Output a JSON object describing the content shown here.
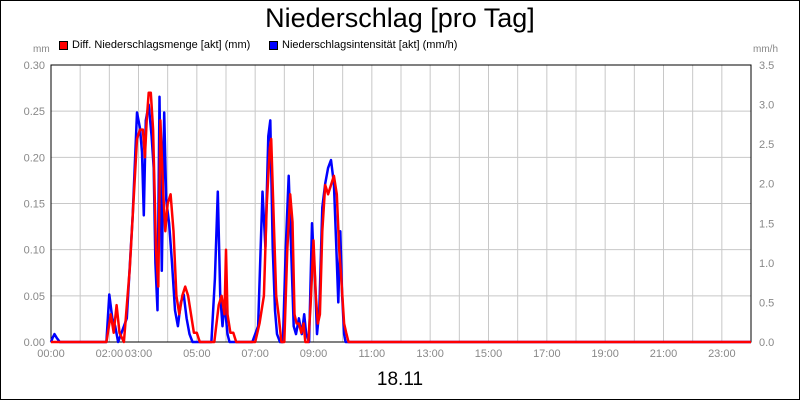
{
  "chart_data": {
    "type": "line",
    "title": "Niederschlag [pro Tag]",
    "xlabel": "18.11",
    "left_axis_unit": "mm",
    "right_axis_unit": "mm/h",
    "x_ticks": [
      "00:00",
      "02:00",
      "03:00",
      "05:00",
      "07:00",
      "09:00",
      "11:00",
      "13:00",
      "15:00",
      "17:00",
      "19:00",
      "21:00",
      "23:00"
    ],
    "y_left_ticks": [
      "0.00",
      "0.05",
      "0.10",
      "0.15",
      "0.20",
      "0.25",
      "0.30"
    ],
    "y_right_ticks": [
      "0.0",
      "0.5",
      "1.0",
      "1.5",
      "2.0",
      "2.5",
      "3.0",
      "3.5"
    ],
    "ylim_left": [
      0,
      0.3
    ],
    "ylim_right": [
      0,
      3.5
    ],
    "xlim": [
      0,
      24
    ],
    "grid": true,
    "legend_position": "top-left",
    "series": [
      {
        "name": "Diff. Niederschlagsmenge [akt] (mm)",
        "axis": "left",
        "color": "#ff0000",
        "points": [
          [
            0.0,
            0.0
          ],
          [
            1.9,
            0.0
          ],
          [
            2.05,
            0.03
          ],
          [
            2.15,
            0.01
          ],
          [
            2.25,
            0.04
          ],
          [
            2.35,
            0.01
          ],
          [
            2.5,
            0.0
          ],
          [
            2.7,
            0.08
          ],
          [
            2.95,
            0.22
          ],
          [
            3.05,
            0.23
          ],
          [
            3.15,
            0.23
          ],
          [
            3.22,
            0.2
          ],
          [
            3.28,
            0.24
          ],
          [
            3.35,
            0.27
          ],
          [
            3.42,
            0.27
          ],
          [
            3.5,
            0.23
          ],
          [
            3.6,
            0.1
          ],
          [
            3.68,
            0.06
          ],
          [
            3.75,
            0.24
          ],
          [
            3.85,
            0.16
          ],
          [
            3.92,
            0.12
          ],
          [
            4.0,
            0.15
          ],
          [
            4.1,
            0.16
          ],
          [
            4.2,
            0.12
          ],
          [
            4.3,
            0.05
          ],
          [
            4.4,
            0.03
          ],
          [
            4.5,
            0.05
          ],
          [
            4.6,
            0.06
          ],
          [
            4.7,
            0.05
          ],
          [
            4.8,
            0.03
          ],
          [
            4.9,
            0.01
          ],
          [
            5.0,
            0.01
          ],
          [
            5.1,
            0.0
          ],
          [
            5.6,
            0.0
          ],
          [
            5.75,
            0.04
          ],
          [
            5.85,
            0.05
          ],
          [
            5.95,
            0.03
          ],
          [
            6.0,
            0.1
          ],
          [
            6.05,
            0.03
          ],
          [
            6.15,
            0.01
          ],
          [
            6.25,
            0.01
          ],
          [
            6.35,
            0.0
          ],
          [
            7.0,
            0.0
          ],
          [
            7.15,
            0.02
          ],
          [
            7.3,
            0.05
          ],
          [
            7.4,
            0.15
          ],
          [
            7.5,
            0.21
          ],
          [
            7.55,
            0.22
          ],
          [
            7.65,
            0.12
          ],
          [
            7.72,
            0.05
          ],
          [
            7.8,
            0.03
          ],
          [
            7.9,
            0.0
          ],
          [
            8.0,
            0.0
          ],
          [
            8.1,
            0.1
          ],
          [
            8.2,
            0.16
          ],
          [
            8.28,
            0.13
          ],
          [
            8.35,
            0.03
          ],
          [
            8.42,
            0.02
          ],
          [
            8.5,
            0.02
          ],
          [
            8.58,
            0.01
          ],
          [
            8.66,
            0.02
          ],
          [
            8.72,
            0.0
          ],
          [
            8.82,
            0.0
          ],
          [
            8.9,
            0.04
          ],
          [
            9.0,
            0.11
          ],
          [
            9.08,
            0.05
          ],
          [
            9.15,
            0.02
          ],
          [
            9.22,
            0.03
          ],
          [
            9.3,
            0.12
          ],
          [
            9.4,
            0.17
          ],
          [
            9.5,
            0.16
          ],
          [
            9.6,
            0.17
          ],
          [
            9.7,
            0.18
          ],
          [
            9.8,
            0.16
          ],
          [
            9.88,
            0.1
          ],
          [
            9.95,
            0.07
          ],
          [
            10.05,
            0.02
          ],
          [
            10.12,
            0.01
          ],
          [
            10.2,
            0.0
          ],
          [
            24.0,
            0.0
          ]
        ]
      },
      {
        "name": "Niederschlagsintensität [akt] (mm/h)",
        "axis": "right",
        "color": "#0000ff",
        "points": [
          [
            0.0,
            0.0
          ],
          [
            0.05,
            0.05
          ],
          [
            0.12,
            0.1
          ],
          [
            0.2,
            0.05
          ],
          [
            0.3,
            0.0
          ],
          [
            1.9,
            0.0
          ],
          [
            2.0,
            0.6
          ],
          [
            2.1,
            0.3
          ],
          [
            2.2,
            0.2
          ],
          [
            2.3,
            0.0
          ],
          [
            2.6,
            0.3
          ],
          [
            2.8,
            1.6
          ],
          [
            2.95,
            2.9
          ],
          [
            3.05,
            2.7
          ],
          [
            3.12,
            2.4
          ],
          [
            3.18,
            1.6
          ],
          [
            3.25,
            2.8
          ],
          [
            3.35,
            3.0
          ],
          [
            3.45,
            2.6
          ],
          [
            3.52,
            2.2
          ],
          [
            3.58,
            1.0
          ],
          [
            3.65,
            0.4
          ],
          [
            3.72,
            3.1
          ],
          [
            3.8,
            0.9
          ],
          [
            3.88,
            2.9
          ],
          [
            3.95,
            1.8
          ],
          [
            4.05,
            1.5
          ],
          [
            4.15,
            1.0
          ],
          [
            4.25,
            0.4
          ],
          [
            4.35,
            0.2
          ],
          [
            4.45,
            0.5
          ],
          [
            4.55,
            0.6
          ],
          [
            4.65,
            0.3
          ],
          [
            4.75,
            0.1
          ],
          [
            4.85,
            0.0
          ],
          [
            5.5,
            0.0
          ],
          [
            5.62,
            0.8
          ],
          [
            5.72,
            1.9
          ],
          [
            5.8,
            0.6
          ],
          [
            5.88,
            0.2
          ],
          [
            5.95,
            0.5
          ],
          [
            6.05,
            0.1
          ],
          [
            6.12,
            0.0
          ],
          [
            6.9,
            0.0
          ],
          [
            7.1,
            0.2
          ],
          [
            7.25,
            1.9
          ],
          [
            7.35,
            1.2
          ],
          [
            7.45,
            2.6
          ],
          [
            7.52,
            2.8
          ],
          [
            7.6,
            1.2
          ],
          [
            7.68,
            0.4
          ],
          [
            7.75,
            0.1
          ],
          [
            7.85,
            0.0
          ],
          [
            7.95,
            0.0
          ],
          [
            8.05,
            1.2
          ],
          [
            8.15,
            2.1
          ],
          [
            8.25,
            1.0
          ],
          [
            8.32,
            0.2
          ],
          [
            8.4,
            0.1
          ],
          [
            8.5,
            0.3
          ],
          [
            8.6,
            0.1
          ],
          [
            8.68,
            0.35
          ],
          [
            8.75,
            0.1
          ],
          [
            8.85,
            0.0
          ],
          [
            8.95,
            1.5
          ],
          [
            9.05,
            0.8
          ],
          [
            9.12,
            0.1
          ],
          [
            9.2,
            0.4
          ],
          [
            9.3,
            1.7
          ],
          [
            9.4,
            2.0
          ],
          [
            9.5,
            2.2
          ],
          [
            9.6,
            2.3
          ],
          [
            9.7,
            2.0
          ],
          [
            9.78,
            1.2
          ],
          [
            9.85,
            0.5
          ],
          [
            9.92,
            1.4
          ],
          [
            9.98,
            0.6
          ],
          [
            10.05,
            0.1
          ],
          [
            10.1,
            0.0
          ],
          [
            24.0,
            0.0
          ]
        ]
      }
    ]
  }
}
